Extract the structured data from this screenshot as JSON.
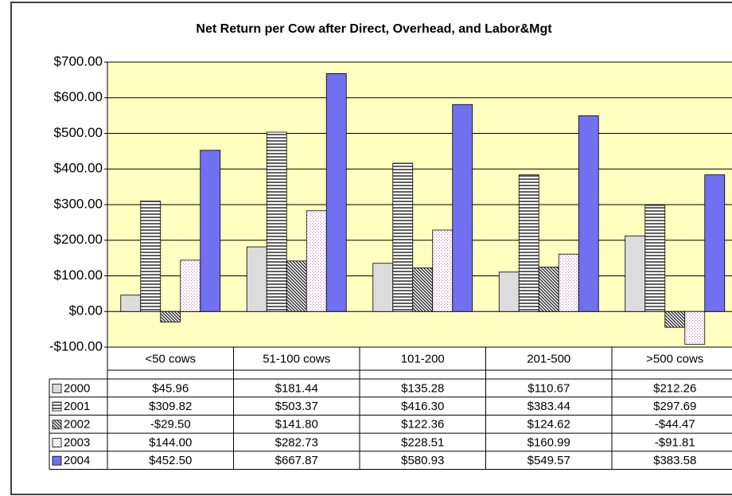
{
  "chart_data": {
    "type": "bar",
    "title": "Net Return per Cow after Direct, Overhead, and Labor&Mgt",
    "categories": [
      "<50 cows",
      "51-100 cows",
      "101-200",
      "201-500",
      ">500 cows"
    ],
    "series": [
      {
        "name": "2000",
        "color": "#dcdcdc",
        "pattern": "solid",
        "values": [
          45.96,
          181.44,
          135.28,
          110.67,
          212.26
        ],
        "value_labels": [
          "$45.96",
          "$181.44",
          "$135.28",
          "$110.67",
          "$212.26"
        ]
      },
      {
        "name": "2001",
        "color": "#606060",
        "pattern": "horizontal",
        "values": [
          309.82,
          503.37,
          416.3,
          383.44,
          297.69
        ],
        "value_labels": [
          "$309.82",
          "$503.37",
          "$416.30",
          "$383.44",
          "$297.69"
        ]
      },
      {
        "name": "2002",
        "color": "#303030",
        "pattern": "diagonal",
        "values": [
          -29.5,
          141.8,
          122.36,
          124.62,
          -44.47
        ],
        "value_labels": [
          "-$29.50",
          "$141.80",
          "$122.36",
          "$124.62",
          "-$44.47"
        ]
      },
      {
        "name": "2003",
        "color": "#c080c0",
        "pattern": "dots",
        "values": [
          144.0,
          282.73,
          228.51,
          160.99,
          -91.81
        ],
        "value_labels": [
          "$144.00",
          "$282.73",
          "$228.51",
          "$160.99",
          "-$91.81"
        ]
      },
      {
        "name": "2004",
        "color": "#7070f0",
        "pattern": "solid",
        "values": [
          452.5,
          667.87,
          580.93,
          549.57,
          383.58
        ],
        "value_labels": [
          "$452.50",
          "$667.87",
          "$580.93",
          "$549.57",
          "$383.58"
        ]
      }
    ],
    "ylim": [
      -100,
      700
    ],
    "yticks": [
      {
        "value": -100,
        "label": "-$100.00"
      },
      {
        "value": 0,
        "label": "$0.00"
      },
      {
        "value": 100,
        "label": "$100.00"
      },
      {
        "value": 200,
        "label": "$200.00"
      },
      {
        "value": 300,
        "label": "$300.00"
      },
      {
        "value": 400,
        "label": "$400.00"
      },
      {
        "value": 500,
        "label": "$500.00"
      },
      {
        "value": 600,
        "label": "$600.00"
      },
      {
        "value": 700,
        "label": "$700.00"
      }
    ],
    "grid": true,
    "plot_background": "#ffffc0"
  }
}
